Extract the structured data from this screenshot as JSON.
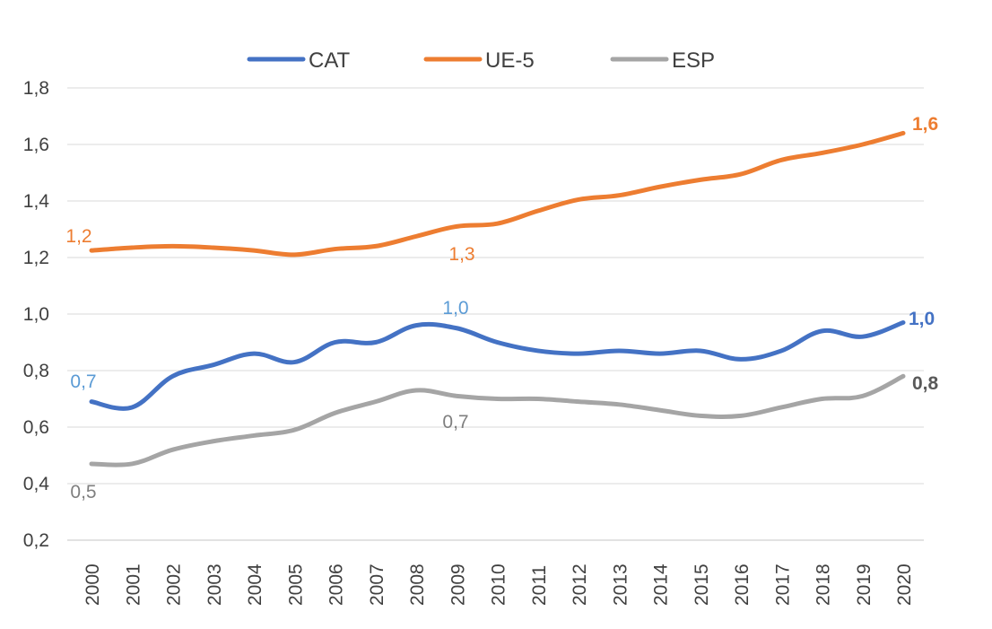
{
  "chart_data": {
    "type": "line",
    "categories": [
      "2000",
      "2001",
      "2002",
      "2003",
      "2004",
      "2005",
      "2006",
      "2007",
      "2008",
      "2009",
      "2010",
      "2011",
      "2012",
      "2013",
      "2014",
      "2015",
      "2016",
      "2017",
      "2018",
      "2019",
      "2020"
    ],
    "ylim": [
      0.2,
      1.8
    ],
    "yticks": [
      "0,2",
      "0,4",
      "0,6",
      "0,8",
      "1,0",
      "1,2",
      "1,4",
      "1,6",
      "1,8"
    ],
    "grid": true,
    "legend_position": "top",
    "series": [
      {
        "name": "CAT",
        "color": "#4472C4",
        "values": [
          0.69,
          0.67,
          0.78,
          0.82,
          0.86,
          0.83,
          0.9,
          0.9,
          0.96,
          0.95,
          0.9,
          0.87,
          0.86,
          0.87,
          0.86,
          0.87,
          0.84,
          0.87,
          0.94,
          0.92,
          0.97
        ]
      },
      {
        "name": "UE-5",
        "color": "#ED7D31",
        "values": [
          1.225,
          1.235,
          1.24,
          1.235,
          1.225,
          1.21,
          1.23,
          1.24,
          1.275,
          1.31,
          1.32,
          1.365,
          1.405,
          1.42,
          1.45,
          1.475,
          1.495,
          1.545,
          1.57,
          1.6,
          1.64
        ]
      },
      {
        "name": "ESP",
        "color": "#A5A5A5",
        "values": [
          0.47,
          0.47,
          0.52,
          0.55,
          0.57,
          0.59,
          0.65,
          0.69,
          0.73,
          0.71,
          0.7,
          0.7,
          0.69,
          0.68,
          0.66,
          0.64,
          0.64,
          0.67,
          0.7,
          0.71,
          0.78
        ]
      }
    ],
    "annotations": [
      {
        "text": "0,7",
        "color": "#5B9BD5",
        "bold": false
      },
      {
        "text": "1,0",
        "color": "#5B9BD5",
        "bold": false
      },
      {
        "text": "1,0",
        "color": "#4472C4",
        "bold": true
      },
      {
        "text": "1,2",
        "color": "#ED7D31",
        "bold": false
      },
      {
        "text": "1,3",
        "color": "#ED7D31",
        "bold": false
      },
      {
        "text": "1,6",
        "color": "#ED7D31",
        "bold": true
      },
      {
        "text": "0,5",
        "color": "#7F7F7F",
        "bold": false
      },
      {
        "text": "0,7",
        "color": "#7F7F7F",
        "bold": false
      },
      {
        "text": "0,8",
        "color": "#595959",
        "bold": true
      }
    ]
  }
}
